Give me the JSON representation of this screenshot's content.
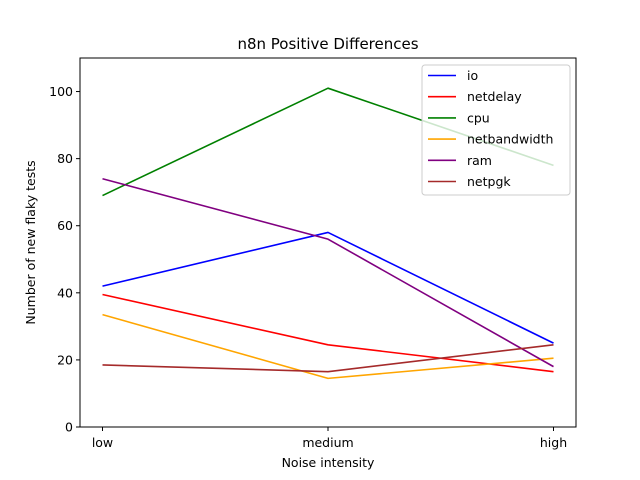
{
  "chart_data": {
    "type": "line",
    "title": "n8n Positive Differences",
    "xlabel": "Noise intensity",
    "ylabel": "Number of new flaky tests",
    "categories": [
      "low",
      "medium",
      "high"
    ],
    "ylim": [
      0,
      110
    ],
    "yticks": [
      0,
      20,
      40,
      60,
      80,
      100
    ],
    "legend_position": "upper-right",
    "grid": false,
    "series": [
      {
        "name": "io",
        "color": "#0000ff",
        "values": [
          42,
          58,
          25
        ]
      },
      {
        "name": "netdelay",
        "color": "#ff0000",
        "values": [
          39.5,
          24.5,
          16.5
        ]
      },
      {
        "name": "cpu",
        "color": "#008000",
        "values": [
          69,
          101,
          78
        ]
      },
      {
        "name": "netbandwidth",
        "color": "#ffa500",
        "values": [
          33.5,
          14.5,
          20.5
        ]
      },
      {
        "name": "ram",
        "color": "#800080",
        "values": [
          74,
          56,
          18
        ]
      },
      {
        "name": "netpgk",
        "color": "#a52a2a",
        "values": [
          18.5,
          16.5,
          24.5
        ]
      }
    ]
  }
}
